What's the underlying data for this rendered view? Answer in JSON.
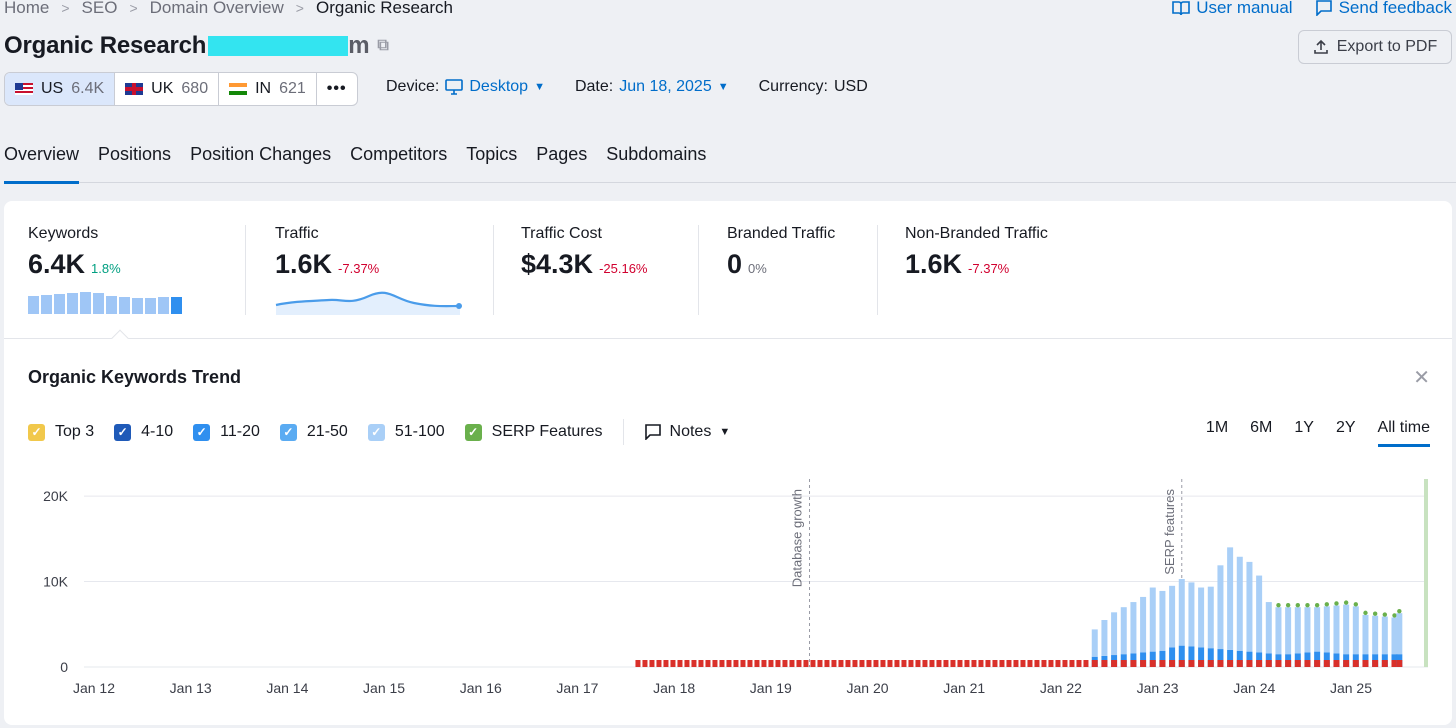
{
  "breadcrumb": [
    "Home",
    "SEO",
    "Domain Overview",
    "Organic Research"
  ],
  "top_links": {
    "manual": "User manual",
    "feedback": "Send feedback"
  },
  "title": {
    "prefix": "Organic Research",
    "tail": "m"
  },
  "export_label": "Export to PDF",
  "databases": [
    {
      "code": "US",
      "value": "6.4K"
    },
    {
      "code": "UK",
      "value": "680"
    },
    {
      "code": "IN",
      "value": "621"
    }
  ],
  "more_label": "•••",
  "filters": {
    "device_label": "Device:",
    "device_value": "Desktop",
    "date_label": "Date:",
    "date_value": "Jun 18, 2025",
    "currency_label": "Currency:",
    "currency_value": "USD"
  },
  "tabs": [
    "Overview",
    "Positions",
    "Position Changes",
    "Competitors",
    "Topics",
    "Pages",
    "Subdomains"
  ],
  "kpis": [
    {
      "label": "Keywords",
      "value": "6.4K",
      "delta": "1.8%"
    },
    {
      "label": "Traffic",
      "value": "1.6K",
      "delta": "-7.37%"
    },
    {
      "label": "Traffic Cost",
      "value": "$4.3K",
      "delta": "-25.16%"
    },
    {
      "label": "Branded Traffic",
      "value": "0",
      "delta": "0%"
    },
    {
      "label": "Non-Branded Traffic",
      "value": "1.6K",
      "delta": "-7.37%"
    }
  ],
  "colors": {
    "accent": "#006dca",
    "positive": "#009f81",
    "negative": "#d1002f"
  },
  "trend": {
    "title": "Organic Keywords Trend",
    "legend": [
      {
        "label": "Top 3",
        "color": "#f1c84b"
      },
      {
        "label": "4-10",
        "color": "#1f5ab8"
      },
      {
        "label": "11-20",
        "color": "#2f8fef"
      },
      {
        "label": "21-50",
        "color": "#5aabf2"
      },
      {
        "label": "51-100",
        "color": "#a9cff7"
      },
      {
        "label": "SERP Features",
        "color": "#6ab04c"
      }
    ],
    "notes_label": "Notes",
    "ranges": [
      "1M",
      "6M",
      "1Y",
      "2Y",
      "All time"
    ],
    "active_range": "All time"
  },
  "chart_data": {
    "type": "bar",
    "stacked": true,
    "title": "",
    "x_ticks": [
      "Jan 12",
      "Jan 13",
      "Jan 14",
      "Jan 15",
      "Jan 16",
      "Jan 17",
      "Jan 18",
      "Jan 19",
      "Jan 20",
      "Jan 21",
      "Jan 22",
      "Jan 23",
      "Jan 24",
      "Jan 25"
    ],
    "y_ticks": [
      "0",
      "10K",
      "20K"
    ],
    "ylim": [
      0,
      22000
    ],
    "annotations": [
      {
        "label": "Database growth",
        "x": "Jan 19.4"
      },
      {
        "label": "SERP features",
        "x": "Jan 23.25"
      }
    ],
    "series": [
      {
        "name": "4-10",
        "values": [
          1200,
          1300,
          1400,
          1500,
          1600,
          1700,
          1800,
          1900,
          2300,
          2500,
          2400,
          2300,
          2200,
          2100,
          2000,
          1900,
          1800,
          1700,
          1600,
          1500,
          1500,
          1600,
          1700,
          1800,
          1700,
          1600,
          1500,
          1500,
          1500,
          1500,
          1500,
          1500,
          1500
        ]
      },
      {
        "name": "51-100",
        "values": [
          3200,
          4200,
          5000,
          5500,
          6000,
          6500,
          7500,
          7000,
          7200,
          7800,
          7500,
          7000,
          7200,
          9800,
          12000,
          11000,
          10500,
          9000,
          6000,
          5500,
          5500,
          5400,
          5300,
          5200,
          5400,
          5600,
          5800,
          5600,
          4600,
          4500,
          4400,
          4300,
          4800
        ]
      }
    ],
    "points_x": [
      "Jan 22.35",
      "Jan 22.45",
      "Jan 22.55",
      "Jan 22.65",
      "Jan 22.75",
      "Jan 22.85",
      "Jan 22.95",
      "Jan 23.05",
      "Jan 23.15",
      "Jan 23.25",
      "Jan 23.35",
      "Jan 23.45",
      "Jan 23.55",
      "Jan 23.65",
      "Jan 23.75",
      "Jan 23.85",
      "Jan 23.95",
      "Jan 24.05",
      "Jan 24.15",
      "Jan 24.25",
      "Jan 24.35",
      "Jan 24.45",
      "Jan 24.55",
      "Jan 24.65",
      "Jan 24.75",
      "Jan 24.85",
      "Jan 24.95",
      "Jan 25.05",
      "Jan 25.15",
      "Jan 25.25",
      "Jan 25.35",
      "Jan 25.45",
      "Jan 25.5"
    ]
  }
}
